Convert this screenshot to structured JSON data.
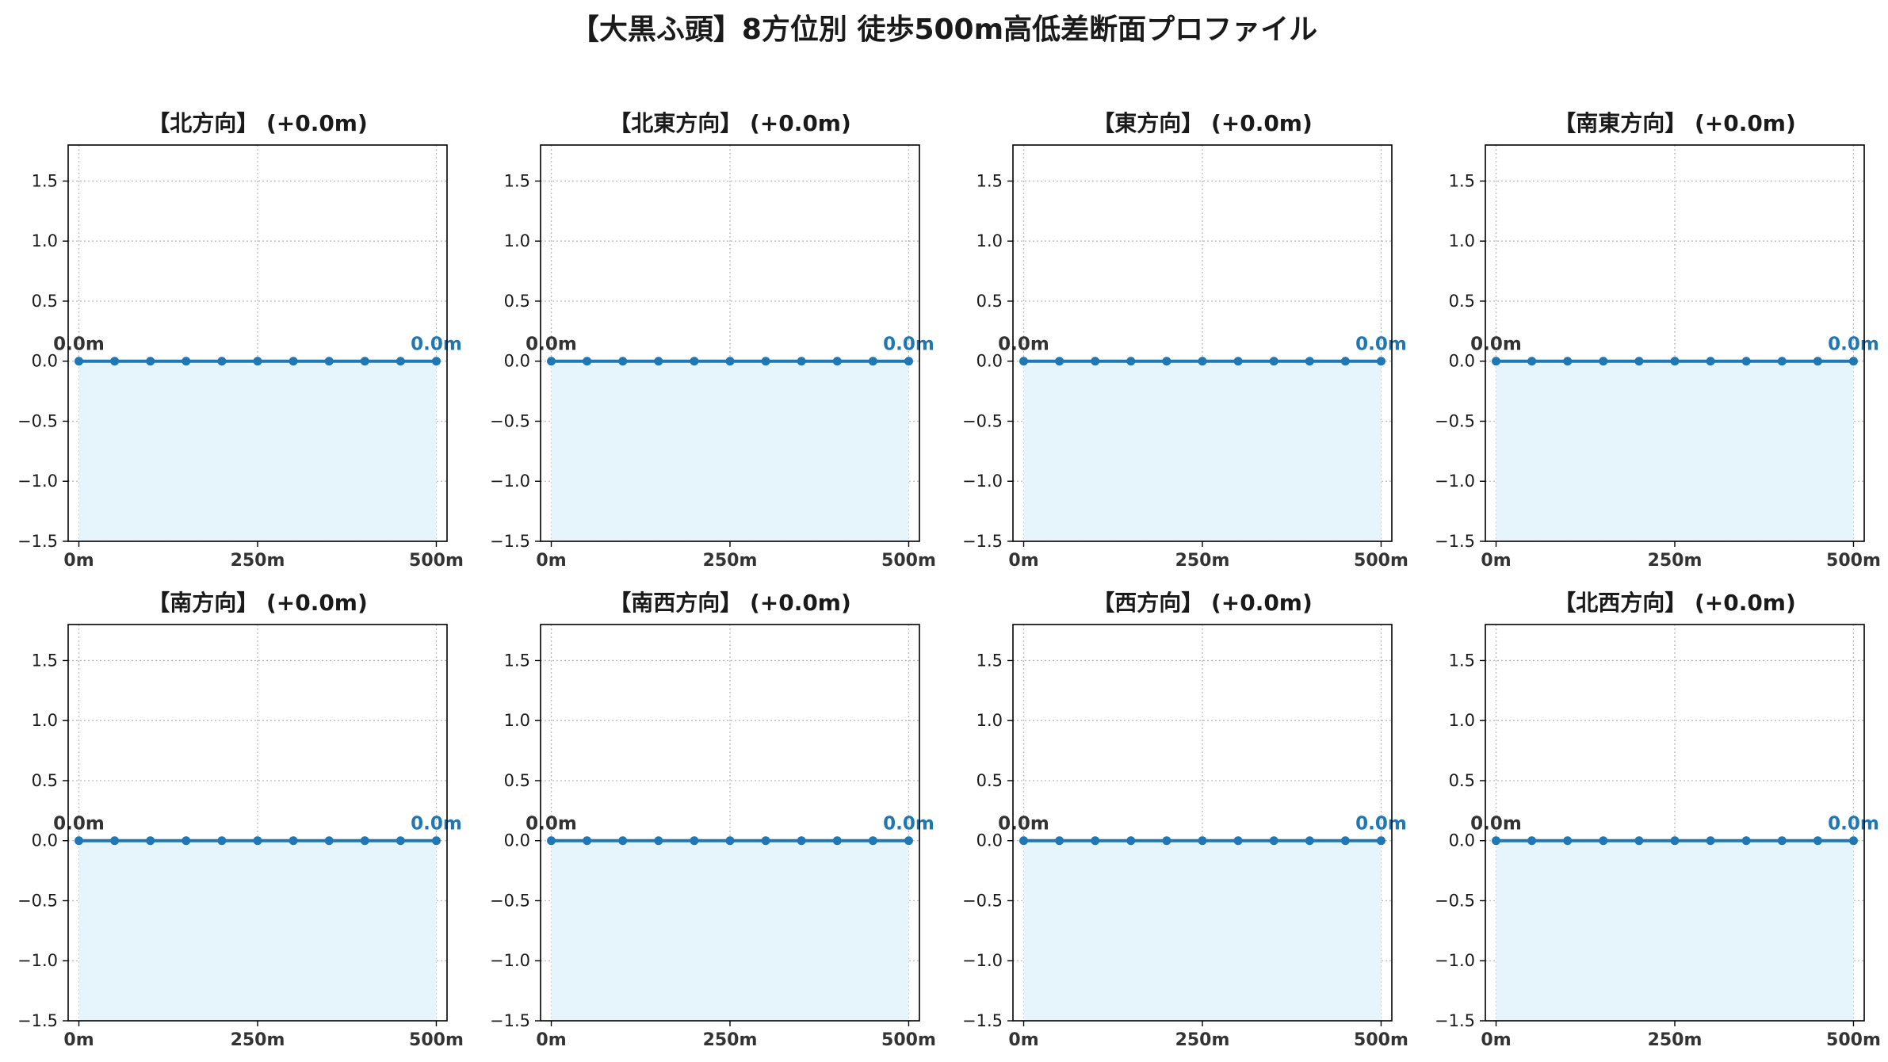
{
  "figure": {
    "title": "【大黒ふ頭】8方位別 徒歩500m高低差断面プロファイル"
  },
  "chart_data": [
    {
      "type": "line",
      "title": "【北方向】 (+0.0m)",
      "x": [
        0,
        50,
        100,
        150,
        200,
        250,
        300,
        350,
        400,
        450,
        500
      ],
      "y": [
        0,
        0,
        0,
        0,
        0,
        0,
        0,
        0,
        0,
        0,
        0
      ],
      "xticks": [
        "0m",
        "250m",
        "500m"
      ],
      "yticks": [
        "−1.5",
        "−1.0",
        "−0.5",
        "0.0",
        "0.5",
        "1.0",
        "1.5"
      ],
      "xlim": [
        -15,
        515
      ],
      "ylim": [
        -1.5,
        1.8
      ],
      "start_label": "0.0m",
      "end_label": "0.0m",
      "grid": true,
      "fill_below": true
    },
    {
      "type": "line",
      "title": "【北東方向】 (+0.0m)",
      "x": [
        0,
        50,
        100,
        150,
        200,
        250,
        300,
        350,
        400,
        450,
        500
      ],
      "y": [
        0,
        0,
        0,
        0,
        0,
        0,
        0,
        0,
        0,
        0,
        0
      ],
      "xticks": [
        "0m",
        "250m",
        "500m"
      ],
      "yticks": [
        "−1.5",
        "−1.0",
        "−0.5",
        "0.0",
        "0.5",
        "1.0",
        "1.5"
      ],
      "xlim": [
        -15,
        515
      ],
      "ylim": [
        -1.5,
        1.8
      ],
      "start_label": "0.0m",
      "end_label": "0.0m",
      "grid": true,
      "fill_below": true
    },
    {
      "type": "line",
      "title": "【東方向】 (+0.0m)",
      "x": [
        0,
        50,
        100,
        150,
        200,
        250,
        300,
        350,
        400,
        450,
        500
      ],
      "y": [
        0,
        0,
        0,
        0,
        0,
        0,
        0,
        0,
        0,
        0,
        0
      ],
      "xticks": [
        "0m",
        "250m",
        "500m"
      ],
      "yticks": [
        "−1.5",
        "−1.0",
        "−0.5",
        "0.0",
        "0.5",
        "1.0",
        "1.5"
      ],
      "xlim": [
        -15,
        515
      ],
      "ylim": [
        -1.5,
        1.8
      ],
      "start_label": "0.0m",
      "end_label": "0.0m",
      "grid": true,
      "fill_below": true
    },
    {
      "type": "line",
      "title": "【南東方向】 (+0.0m)",
      "x": [
        0,
        50,
        100,
        150,
        200,
        250,
        300,
        350,
        400,
        450,
        500
      ],
      "y": [
        0,
        0,
        0,
        0,
        0,
        0,
        0,
        0,
        0,
        0,
        0
      ],
      "xticks": [
        "0m",
        "250m",
        "500m"
      ],
      "yticks": [
        "−1.5",
        "−1.0",
        "−0.5",
        "0.0",
        "0.5",
        "1.0",
        "1.5"
      ],
      "xlim": [
        -15,
        515
      ],
      "ylim": [
        -1.5,
        1.8
      ],
      "start_label": "0.0m",
      "end_label": "0.0m",
      "grid": true,
      "fill_below": true
    },
    {
      "type": "line",
      "title": "【南方向】 (+0.0m)",
      "x": [
        0,
        50,
        100,
        150,
        200,
        250,
        300,
        350,
        400,
        450,
        500
      ],
      "y": [
        0,
        0,
        0,
        0,
        0,
        0,
        0,
        0,
        0,
        0,
        0
      ],
      "xticks": [
        "0m",
        "250m",
        "500m"
      ],
      "yticks": [
        "−1.5",
        "−1.0",
        "−0.5",
        "0.0",
        "0.5",
        "1.0",
        "1.5"
      ],
      "xlim": [
        -15,
        515
      ],
      "ylim": [
        -1.5,
        1.8
      ],
      "start_label": "0.0m",
      "end_label": "0.0m",
      "grid": true,
      "fill_below": true
    },
    {
      "type": "line",
      "title": "【南西方向】 (+0.0m)",
      "x": [
        0,
        50,
        100,
        150,
        200,
        250,
        300,
        350,
        400,
        450,
        500
      ],
      "y": [
        0,
        0,
        0,
        0,
        0,
        0,
        0,
        0,
        0,
        0,
        0
      ],
      "xticks": [
        "0m",
        "250m",
        "500m"
      ],
      "yticks": [
        "−1.5",
        "−1.0",
        "−0.5",
        "0.0",
        "0.5",
        "1.0",
        "1.5"
      ],
      "xlim": [
        -15,
        515
      ],
      "ylim": [
        -1.5,
        1.8
      ],
      "start_label": "0.0m",
      "end_label": "0.0m",
      "grid": true,
      "fill_below": true
    },
    {
      "type": "line",
      "title": "【西方向】 (+0.0m)",
      "x": [
        0,
        50,
        100,
        150,
        200,
        250,
        300,
        350,
        400,
        450,
        500
      ],
      "y": [
        0,
        0,
        0,
        0,
        0,
        0,
        0,
        0,
        0,
        0,
        0
      ],
      "xticks": [
        "0m",
        "250m",
        "500m"
      ],
      "yticks": [
        "−1.5",
        "−1.0",
        "−0.5",
        "0.0",
        "0.5",
        "1.0",
        "1.5"
      ],
      "xlim": [
        -15,
        515
      ],
      "ylim": [
        -1.5,
        1.8
      ],
      "start_label": "0.0m",
      "end_label": "0.0m",
      "grid": true,
      "fill_below": true
    },
    {
      "type": "line",
      "title": "【北西方向】 (+0.0m)",
      "x": [
        0,
        50,
        100,
        150,
        200,
        250,
        300,
        350,
        400,
        450,
        500
      ],
      "y": [
        0,
        0,
        0,
        0,
        0,
        0,
        0,
        0,
        0,
        0,
        0
      ],
      "xticks": [
        "0m",
        "250m",
        "500m"
      ],
      "yticks": [
        "−1.5",
        "−1.0",
        "−0.5",
        "0.0",
        "0.5",
        "1.0",
        "1.5"
      ],
      "xlim": [
        -15,
        515
      ],
      "ylim": [
        -1.5,
        1.8
      ],
      "start_label": "0.0m",
      "end_label": "0.0m",
      "grid": true,
      "fill_below": true
    }
  ],
  "colors": {
    "line": "#1f77b4",
    "end_label": "#1f77b4",
    "start_label": "#333333",
    "fill": "#e6f5fc",
    "grid": "#bbbbbb",
    "axes": "#000000",
    "tick_label": "#1a1a1a",
    "xtick_label": "#333333"
  }
}
